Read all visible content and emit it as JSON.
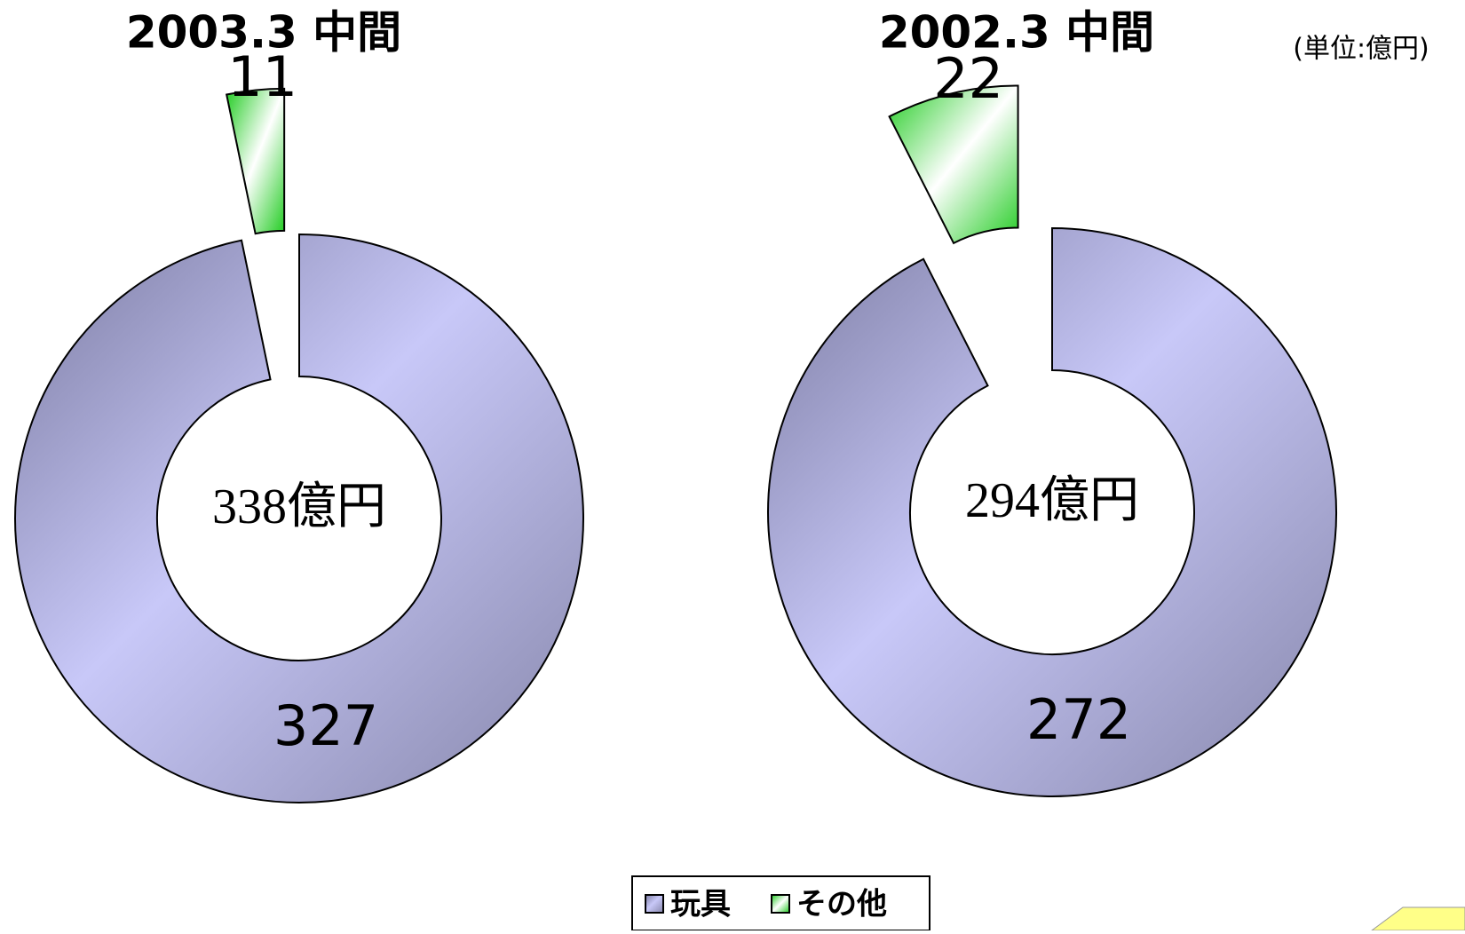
{
  "chart_data": [
    {
      "type": "donut",
      "title": "2003.3 中間",
      "categories": [
        "玩具",
        "その他"
      ],
      "values": [
        327,
        11
      ],
      "colors": [
        "#c8c8f8",
        "#33dd33"
      ],
      "center_label": "338億円"
    },
    {
      "type": "donut",
      "title": "2002.3 中間",
      "categories": [
        "玩具",
        "その他"
      ],
      "values": [
        272,
        22
      ],
      "colors": [
        "#c8c8f8",
        "#33dd33"
      ],
      "center_label": "294億円"
    }
  ],
  "unit_label": "(単位:億円)"
}
